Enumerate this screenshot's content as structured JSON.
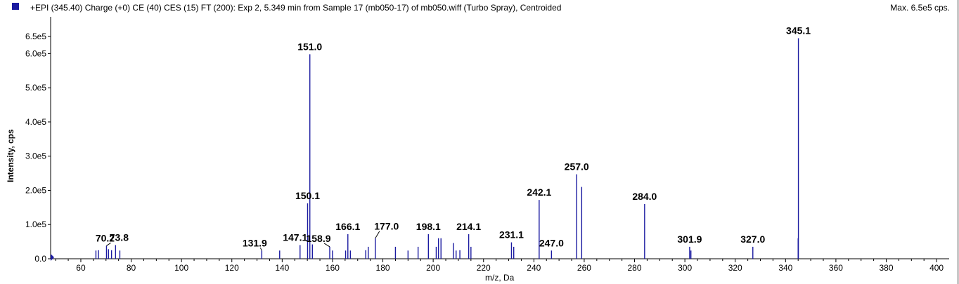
{
  "header": {
    "title": "+EPI (345.40) Charge (+0) CE (40) CES (15) FT (200): Exp 2, 5.349 min from Sample 17 (mb050-17) of mb050.wiff (Turbo Spray), Centroided",
    "max_label": "Max. 6.5e5 cps.",
    "series_color": "#1a1aa0"
  },
  "chart_data": {
    "type": "bar",
    "xlabel": "m/z, Da",
    "ylabel": "Intensity, cps",
    "xlim": [
      48,
      405
    ],
    "ylim": [
      0,
      650000
    ],
    "xticks": [
      60,
      80,
      100,
      120,
      140,
      160,
      180,
      200,
      220,
      240,
      260,
      280,
      300,
      320,
      340,
      360,
      380,
      400
    ],
    "yticks": [
      {
        "value": 0,
        "label": "0.0"
      },
      {
        "value": 100000,
        "label": "1.0e5"
      },
      {
        "value": 200000,
        "label": "2.0e5"
      },
      {
        "value": 300000,
        "label": "3.0e5"
      },
      {
        "value": 400000,
        "label": "4.0e5"
      },
      {
        "value": 500000,
        "label": "5.0e5"
      },
      {
        "value": 600000,
        "label": "6.0e5"
      },
      {
        "value": 650000,
        "label": "6.5e5"
      }
    ],
    "color": "#1a1aa0",
    "peaks": [
      {
        "mz": 66.0,
        "intensity": 24000
      },
      {
        "mz": 67.0,
        "intensity": 25000
      },
      {
        "mz": 70.2,
        "intensity": 38000,
        "label": "70.2"
      },
      {
        "mz": 71.0,
        "intensity": 28000
      },
      {
        "mz": 72.2,
        "intensity": 25000
      },
      {
        "mz": 73.8,
        "intensity": 40000,
        "label": "73.8"
      },
      {
        "mz": 75.5,
        "intensity": 24000
      },
      {
        "mz": 131.9,
        "intensity": 24000,
        "label": "131.9"
      },
      {
        "mz": 139.0,
        "intensity": 24000
      },
      {
        "mz": 147.1,
        "intensity": 40000,
        "label": "147.1"
      },
      {
        "mz": 150.1,
        "intensity": 162000,
        "label": "150.1"
      },
      {
        "mz": 151.0,
        "intensity": 598000,
        "label": "151.0"
      },
      {
        "mz": 152.0,
        "intensity": 42000
      },
      {
        "mz": 158.9,
        "intensity": 35000,
        "label": "158.9"
      },
      {
        "mz": 160.0,
        "intensity": 24000
      },
      {
        "mz": 165.2,
        "intensity": 24000
      },
      {
        "mz": 166.1,
        "intensity": 72000,
        "label": "166.1"
      },
      {
        "mz": 167.1,
        "intensity": 24000
      },
      {
        "mz": 173.2,
        "intensity": 25000
      },
      {
        "mz": 174.2,
        "intensity": 35000
      },
      {
        "mz": 177.0,
        "intensity": 60000,
        "label": "177.0"
      },
      {
        "mz": 185.0,
        "intensity": 35000
      },
      {
        "mz": 190.0,
        "intensity": 24000
      },
      {
        "mz": 194.0,
        "intensity": 35000
      },
      {
        "mz": 198.1,
        "intensity": 72000,
        "label": "198.1"
      },
      {
        "mz": 201.2,
        "intensity": 35000
      },
      {
        "mz": 202.1,
        "intensity": 60000
      },
      {
        "mz": 203.1,
        "intensity": 60000
      },
      {
        "mz": 208.0,
        "intensity": 46000
      },
      {
        "mz": 209.1,
        "intensity": 24000
      },
      {
        "mz": 210.6,
        "intensity": 25000
      },
      {
        "mz": 214.1,
        "intensity": 72000,
        "label": "214.1"
      },
      {
        "mz": 215.0,
        "intensity": 35000
      },
      {
        "mz": 231.1,
        "intensity": 48000,
        "label": "231.1"
      },
      {
        "mz": 232.0,
        "intensity": 35000
      },
      {
        "mz": 242.1,
        "intensity": 172000,
        "label": "242.1"
      },
      {
        "mz": 247.0,
        "intensity": 24000,
        "label": "247.0"
      },
      {
        "mz": 257.0,
        "intensity": 247000,
        "label": "257.0"
      },
      {
        "mz": 259.0,
        "intensity": 210000
      },
      {
        "mz": 284.0,
        "intensity": 160000,
        "label": "284.0"
      },
      {
        "mz": 301.9,
        "intensity": 35000,
        "label": "301.9"
      },
      {
        "mz": 302.4,
        "intensity": 24000
      },
      {
        "mz": 327.0,
        "intensity": 35000,
        "label": "327.0"
      },
      {
        "mz": 345.0,
        "intensity": 60000
      },
      {
        "mz": 345.1,
        "intensity": 645000,
        "label": "345.1"
      }
    ]
  }
}
